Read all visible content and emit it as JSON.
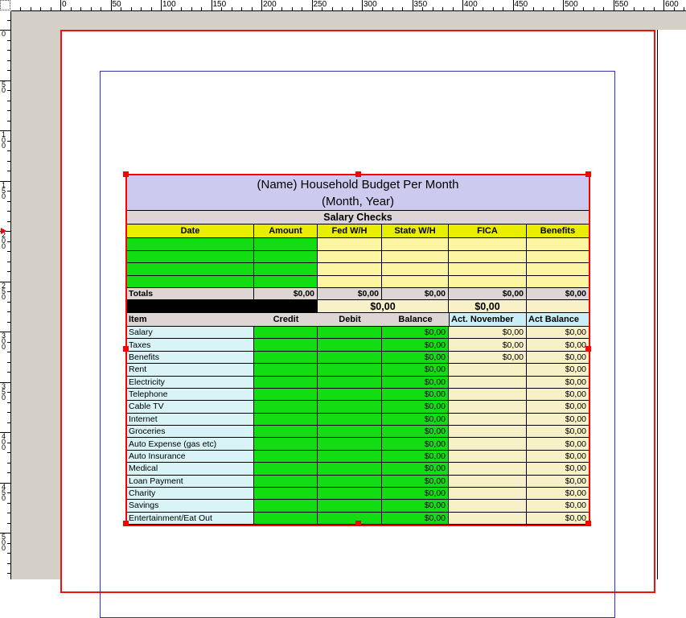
{
  "colors": {
    "selection": "#ff0000",
    "page_border": "#f01010",
    "margin_guide": "#3232b4",
    "canvas_gray": "#d4d0c8",
    "title_lavender": "#cccaee",
    "gray_row": "#ded5d5",
    "header_yellow": "#e9ee00",
    "cell_green": "#12dd12",
    "cell_pale_yellow": "#fdf5a1",
    "cell_cream": "#f8f0c6",
    "item_cyan": "#d8f3f6",
    "header_cyan": "#c9eef5"
  },
  "rulers": {
    "top_labels": [
      "0",
      "50",
      "100",
      "150",
      "200",
      "250",
      "300",
      "350",
      "400",
      "450",
      "500",
      "550",
      "600"
    ],
    "left_labels": [
      "0",
      "50",
      "100",
      "150",
      "200",
      "250",
      "300",
      "350",
      "400",
      "450",
      "500"
    ]
  },
  "table": {
    "title_line1": "(Name)  Household Budget Per Month",
    "title_line2": "(Month, Year)",
    "section_header": "Salary Checks",
    "salary_columns": [
      "Date",
      "Amount",
      "Fed W/H",
      "State W/H",
      "FICA",
      "Benefits"
    ],
    "empty_salary_rows": 4,
    "totals": {
      "label": "Totals",
      "amount": "$0,00",
      "fed_wh": "$0,00",
      "state_wh": "$0,00",
      "fica": "$0,00",
      "benefits": "$0,00"
    },
    "summary": {
      "fed_state_total": "$0,00",
      "fica_total": "$0,00"
    },
    "budget_columns": [
      "Item",
      "Credit",
      "Debit",
      "Balance",
      "Act. November",
      "Act Balance"
    ],
    "items": [
      {
        "name": "Salary",
        "credit": "",
        "debit": "",
        "balance": "$0,00",
        "act_november": "$0,00",
        "act_balance": "$0,00"
      },
      {
        "name": "Taxes",
        "credit": "",
        "debit": "",
        "balance": "$0,00",
        "act_november": "$0,00",
        "act_balance": "$0,00"
      },
      {
        "name": "Benefits",
        "credit": "",
        "debit": "",
        "balance": "$0,00",
        "act_november": "$0,00",
        "act_balance": "$0,00"
      },
      {
        "name": "Rent",
        "credit": "",
        "debit": "",
        "balance": "$0,00",
        "act_november": "",
        "act_balance": "$0,00"
      },
      {
        "name": "Electricity",
        "credit": "",
        "debit": "",
        "balance": "$0,00",
        "act_november": "",
        "act_balance": "$0,00"
      },
      {
        "name": "Telephone",
        "credit": "",
        "debit": "",
        "balance": "$0,00",
        "act_november": "",
        "act_balance": "$0,00"
      },
      {
        "name": "Cable TV",
        "credit": "",
        "debit": "",
        "balance": "$0,00",
        "act_november": "",
        "act_balance": "$0,00"
      },
      {
        "name": "Internet",
        "credit": "",
        "debit": "",
        "balance": "$0,00",
        "act_november": "",
        "act_balance": "$0,00"
      },
      {
        "name": "Groceries",
        "credit": "",
        "debit": "",
        "balance": "$0,00",
        "act_november": "",
        "act_balance": "$0,00"
      },
      {
        "name": "Auto Expense (gas etc)",
        "credit": "",
        "debit": "",
        "balance": "$0,00",
        "act_november": "",
        "act_balance": "$0,00"
      },
      {
        "name": "Auto Insurance",
        "credit": "",
        "debit": "",
        "balance": "$0,00",
        "act_november": "",
        "act_balance": "$0,00"
      },
      {
        "name": "Medical",
        "credit": "",
        "debit": "",
        "balance": "$0,00",
        "act_november": "",
        "act_balance": "$0,00"
      },
      {
        "name": "Loan Payment",
        "credit": "",
        "debit": "",
        "balance": "$0,00",
        "act_november": "",
        "act_balance": "$0,00"
      },
      {
        "name": "Charity",
        "credit": "",
        "debit": "",
        "balance": "$0,00",
        "act_november": "",
        "act_balance": "$0,00"
      },
      {
        "name": "Savings",
        "credit": "",
        "debit": "",
        "balance": "$0,00",
        "act_november": "",
        "act_balance": "$0,00"
      },
      {
        "name": "Entertainment/Eat Out",
        "credit": "",
        "debit": "",
        "balance": "$0,00",
        "act_november": "",
        "act_balance": "$0,00"
      }
    ]
  }
}
